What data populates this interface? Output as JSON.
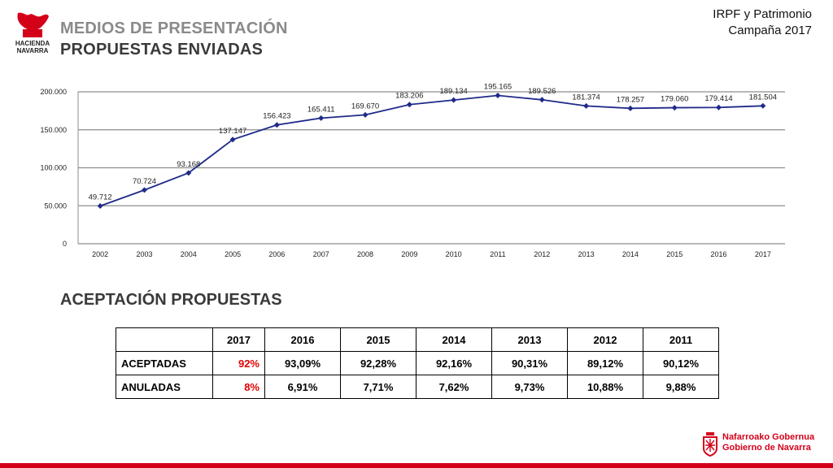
{
  "header": {
    "logo_lines": [
      "HACIENDA",
      "NAVARRA"
    ],
    "title_line1": "MEDIOS DE PRESENTACIÓN",
    "title_line2": "PROPUESTAS ENVIADAS",
    "topright_line1": "IRPF y Patrimonio",
    "topright_line2": "Campaña 2017"
  },
  "chart_data": {
    "type": "line",
    "x": [
      "2002",
      "2003",
      "2004",
      "2005",
      "2006",
      "2007",
      "2008",
      "2009",
      "2010",
      "2011",
      "2012",
      "2013",
      "2014",
      "2015",
      "2016",
      "2017"
    ],
    "values": [
      49712,
      70724,
      93168,
      137147,
      156423,
      165411,
      169670,
      183206,
      189134,
      195165,
      189526,
      181374,
      178257,
      179060,
      179414,
      181504
    ],
    "labels": [
      "49.712",
      "70.724",
      "93.168",
      "137.147",
      "156.423",
      "165.411",
      "169.670",
      "183.206",
      "189.134",
      "195.165",
      "189.526",
      "181.374",
      "178.257",
      "179.060",
      "179.414",
      "181.504"
    ],
    "ylim": [
      0,
      200000
    ],
    "yticks": [
      0,
      50000,
      100000,
      150000,
      200000
    ],
    "ytick_labels": [
      "0",
      "50.000",
      "100.000",
      "150.000",
      "200.000"
    ],
    "grid": true,
    "line_color": "#1f2a8a"
  },
  "section2": {
    "title": "ACEPTACIÓN PROPUESTAS"
  },
  "table": {
    "headers": [
      "",
      "2017",
      "2016",
      "2015",
      "2014",
      "2013",
      "2012",
      "2011"
    ],
    "rows": [
      {
        "label": "ACEPTADAS",
        "values": [
          "92%",
          "93,09%",
          "92,28%",
          "92,16%",
          "90,31%",
          "89,12%",
          "90,12%"
        ]
      },
      {
        "label": "ANULADAS",
        "values": [
          "8%",
          "6,91%",
          "7,71%",
          "7,62%",
          "9,73%",
          "10,88%",
          "9,88%"
        ]
      }
    ],
    "highlight_color": "#e00000"
  },
  "footer": {
    "line1": "Nafarroako Gobernua",
    "line2": "Gobierno de Navarra",
    "brand_color": "#d4001a"
  }
}
